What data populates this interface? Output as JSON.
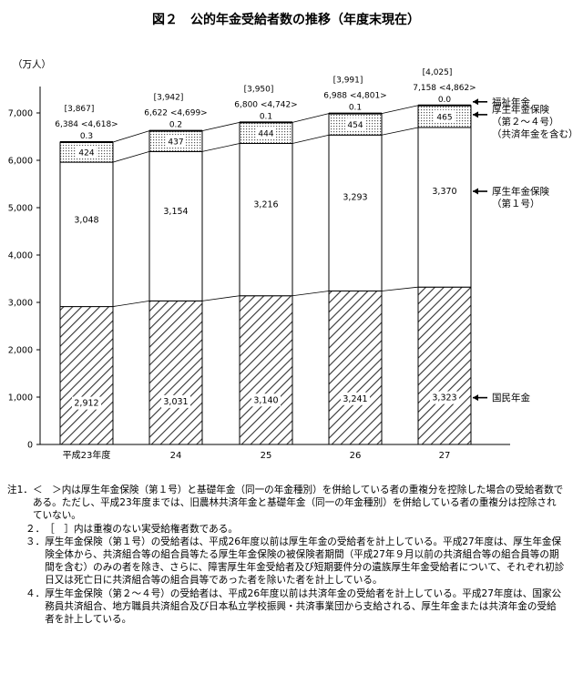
{
  "chart_data": {
    "type": "bar",
    "title": "図２　公的年金受給者数の推移（年度末現在）",
    "unit_label": "（万人）",
    "categories": [
      "平成23年度",
      "24",
      "25",
      "26",
      "27"
    ],
    "ylim": [
      0,
      7000
    ],
    "yticks": [
      "0",
      "1,000",
      "2,000",
      "3,000",
      "4,000",
      "5,000",
      "6,000",
      "7,000"
    ],
    "ytick_values": [
      0,
      1000,
      2000,
      3000,
      4000,
      5000,
      6000,
      7000
    ],
    "stacked": true,
    "series": [
      {
        "name": "国民年金",
        "values": [
          2912,
          3031,
          3140,
          3241,
          3323
        ],
        "labels": [
          "2,912",
          "3,031",
          "3,140",
          "3,241",
          "3,323"
        ]
      },
      {
        "name": "厚生年金保険（第１号）",
        "values": [
          3048,
          3154,
          3216,
          3293,
          3370
        ],
        "labels": [
          "3,048",
          "3,154",
          "3,216",
          "3,293",
          "3,370"
        ]
      },
      {
        "name": "厚生年金保険（第２～４号）（共済年金を含む）",
        "values": [
          424,
          437,
          444,
          454,
          465
        ],
        "labels": [
          "424",
          "437",
          "444",
          "454",
          "465"
        ]
      },
      {
        "name": "福祉年金",
        "values": [
          0.3,
          0.2,
          0.1,
          0.1,
          0.0
        ],
        "labels": [
          "0.3",
          "0.2",
          "0.1",
          "0.1",
          "0.0"
        ]
      }
    ],
    "totals": [
      "6,384",
      "6,622",
      "6,800",
      "6,988",
      "7,158"
    ],
    "net_totals": [
      "<4,618>",
      "<4,699>",
      "<4,742>",
      "<4,801>",
      "<4,862>"
    ],
    "bracket_totals": [
      "[3,867]",
      "[3,942]",
      "[3,950]",
      "[3,991]",
      "[4,025]"
    ],
    "legend_labels": [
      {
        "series": 3,
        "lines": [
          "福祉年金"
        ]
      },
      {
        "series": 2,
        "lines": [
          "厚生年金保険",
          "（第２～４号）",
          "（共済年金を含む）"
        ]
      },
      {
        "series": 1,
        "lines": [
          "厚生年金保険",
          "（第１号）"
        ]
      },
      {
        "series": 0,
        "lines": [
          "国民年金"
        ]
      }
    ]
  },
  "notes": [
    {
      "num": "注1．",
      "text": "＜　＞内は厚生年金保険（第１号）と基礎年金（同一の年金種別）を併給している者の重複分を控除した場合の受給者数である。ただし、平成23年度までは、旧農林共済年金と基礎年金（同一の年金種別）を併給している者の重複分は控除されていない。"
    },
    {
      "num": "２．",
      "text": "［　］内は重複のない実受給権者数である。"
    },
    {
      "num": "３．",
      "text": "厚生年金保険（第１号）の受給者は、平成26年度以前は厚生年金の受給者を計上している。平成27年度は、厚生年金保険全体から、共済組合等の組合員等たる厚生年金保険の被保険者期間（平成27年９月以前の共済組合等の組合員等の期間を含む）のみの者を除き、さらに、障害厚生年金受給者及び短期要件分の遺族厚生年金受給者について、それぞれ初診日又は死亡日に共済組合等の組合員等であった者を除いた者を計上している。"
    },
    {
      "num": "４．",
      "text": "厚生年金保険（第２～４号）の受給者は、平成26年度以前は共済年金の受給者を計上している。平成27年度は、国家公務員共済組合、地方職員共済組合及び日本私立学校振興・共済事業団から支給される、厚生年金または共済年金の受給者を計上している。"
    }
  ]
}
